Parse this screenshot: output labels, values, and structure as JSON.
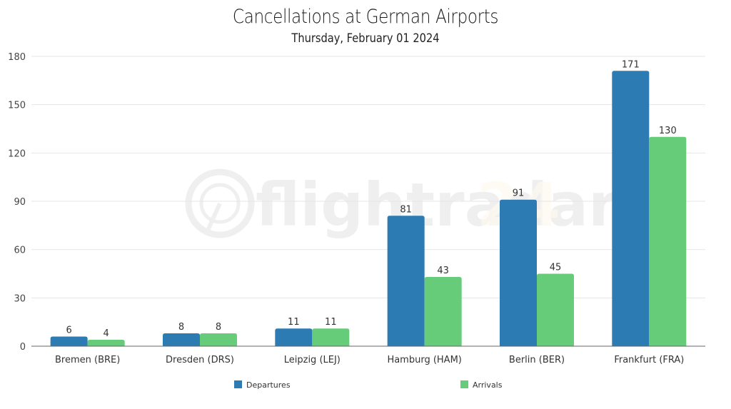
{
  "chart_data": {
    "type": "bar",
    "title": "Cancellations at German Airports",
    "subtitle": "Thursday, February 01 2024",
    "xlabel": "",
    "ylabel": "",
    "categories": [
      "Bremen (BRE)",
      "Dresden (DRS)",
      "Leipzig (LEJ)",
      "Hamburg (HAM)",
      "Berlin (BER)",
      "Frankfurt (FRA)"
    ],
    "series": [
      {
        "name": "Departures",
        "color": "#2c7bb3",
        "values": [
          6,
          8,
          11,
          81,
          91,
          171
        ]
      },
      {
        "name": "Arrivals",
        "color": "#66cc7a",
        "values": [
          4,
          8,
          11,
          43,
          45,
          130
        ]
      }
    ],
    "ylim": [
      0,
      180
    ],
    "yticks": [
      0,
      30,
      60,
      90,
      120,
      150,
      180
    ],
    "grid": true,
    "legend": "bottom-center",
    "data_labels": true
  },
  "watermark": {
    "text_main": "flightradar",
    "text_accent": "24",
    "icon": "radar-logo-icon"
  }
}
